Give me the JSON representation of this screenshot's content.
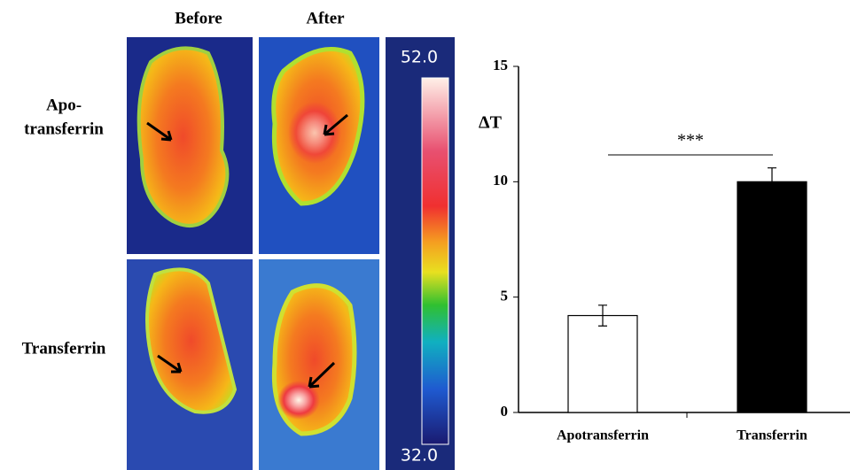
{
  "panel": {
    "columns": [
      "Before",
      "After"
    ],
    "rows": [
      [
        "Apo-",
        "transferrin"
      ],
      [
        "Transferrin"
      ]
    ],
    "colorbar_ticks": [
      {
        "value": 32,
        "label": "32.0"
      },
      {
        "value": 52,
        "label": "52.0"
      }
    ]
  },
  "chart_data": {
    "type": "bar",
    "ylabel": "ΔT",
    "categories": [
      "Apotransferrin",
      "Transferrin"
    ],
    "values": [
      4.2,
      10.0
    ],
    "errors": [
      0.45,
      0.6
    ],
    "colors": [
      "#ffffff",
      "#000000"
    ],
    "ylim": [
      0,
      15
    ],
    "yticks": [
      0,
      5,
      10,
      15
    ],
    "annotation": "***"
  }
}
